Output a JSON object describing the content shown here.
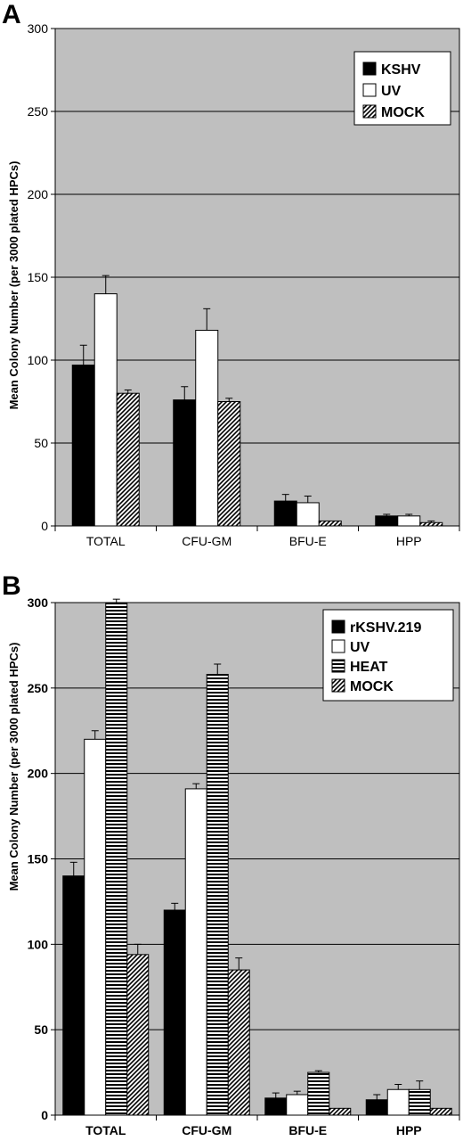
{
  "panels": [
    {
      "letter": "A"
    },
    {
      "letter": "B"
    }
  ],
  "chart_data": [
    {
      "type": "bar",
      "title": "",
      "xlabel": "",
      "ylabel": "Mean Colony Number (per 3000 plated HPCs)",
      "ylim": [
        0,
        300
      ],
      "yticks": [
        0,
        50,
        100,
        150,
        200,
        250,
        300
      ],
      "grid": true,
      "legend_position": "top-right",
      "categories": [
        "TOTAL",
        "CFU-GM",
        "BFU-E",
        "HPP"
      ],
      "series": [
        {
          "name": "KSHV",
          "pattern": "solid",
          "values": [
            97,
            76,
            15,
            6
          ],
          "errors": [
            12,
            8,
            4,
            1
          ]
        },
        {
          "name": "UV",
          "pattern": "white",
          "values": [
            140,
            118,
            14,
            6
          ],
          "errors": [
            11,
            13,
            4,
            1
          ]
        },
        {
          "name": "MOCK",
          "pattern": "diagonal",
          "values": [
            80,
            75,
            3,
            2
          ],
          "errors": [
            2,
            2,
            0,
            1
          ]
        }
      ]
    },
    {
      "type": "bar",
      "title": "",
      "xlabel": "",
      "ylabel": "Mean Colony Number (per 3000 plated HPCs)",
      "ylim": [
        0,
        300
      ],
      "yticks": [
        0,
        50,
        100,
        150,
        200,
        250,
        300
      ],
      "grid": true,
      "legend_position": "top-right",
      "categories": [
        "TOTAL",
        "CFU-GM",
        "BFU-E",
        "HPP"
      ],
      "series": [
        {
          "name": "rKSHV.219",
          "pattern": "solid",
          "values": [
            140,
            120,
            10,
            9
          ],
          "errors": [
            8,
            4,
            3,
            3
          ]
        },
        {
          "name": "UV",
          "pattern": "white",
          "values": [
            220,
            191,
            12,
            15
          ],
          "errors": [
            5,
            3,
            2,
            3
          ]
        },
        {
          "name": "HEAT",
          "pattern": "horizontal",
          "values": [
            300,
            258,
            25,
            15
          ],
          "errors": [
            2,
            6,
            1,
            5
          ]
        },
        {
          "name": "MOCK",
          "pattern": "diagonal",
          "values": [
            94,
            85,
            4,
            4
          ],
          "errors": [
            6,
            7,
            0,
            0
          ]
        }
      ]
    }
  ],
  "colors": {
    "plot_background": "#bfbfbf",
    "gridline": "#000000",
    "bar_solid": "#000000",
    "bar_white": "#ffffff",
    "legend_background": "#ffffff"
  }
}
